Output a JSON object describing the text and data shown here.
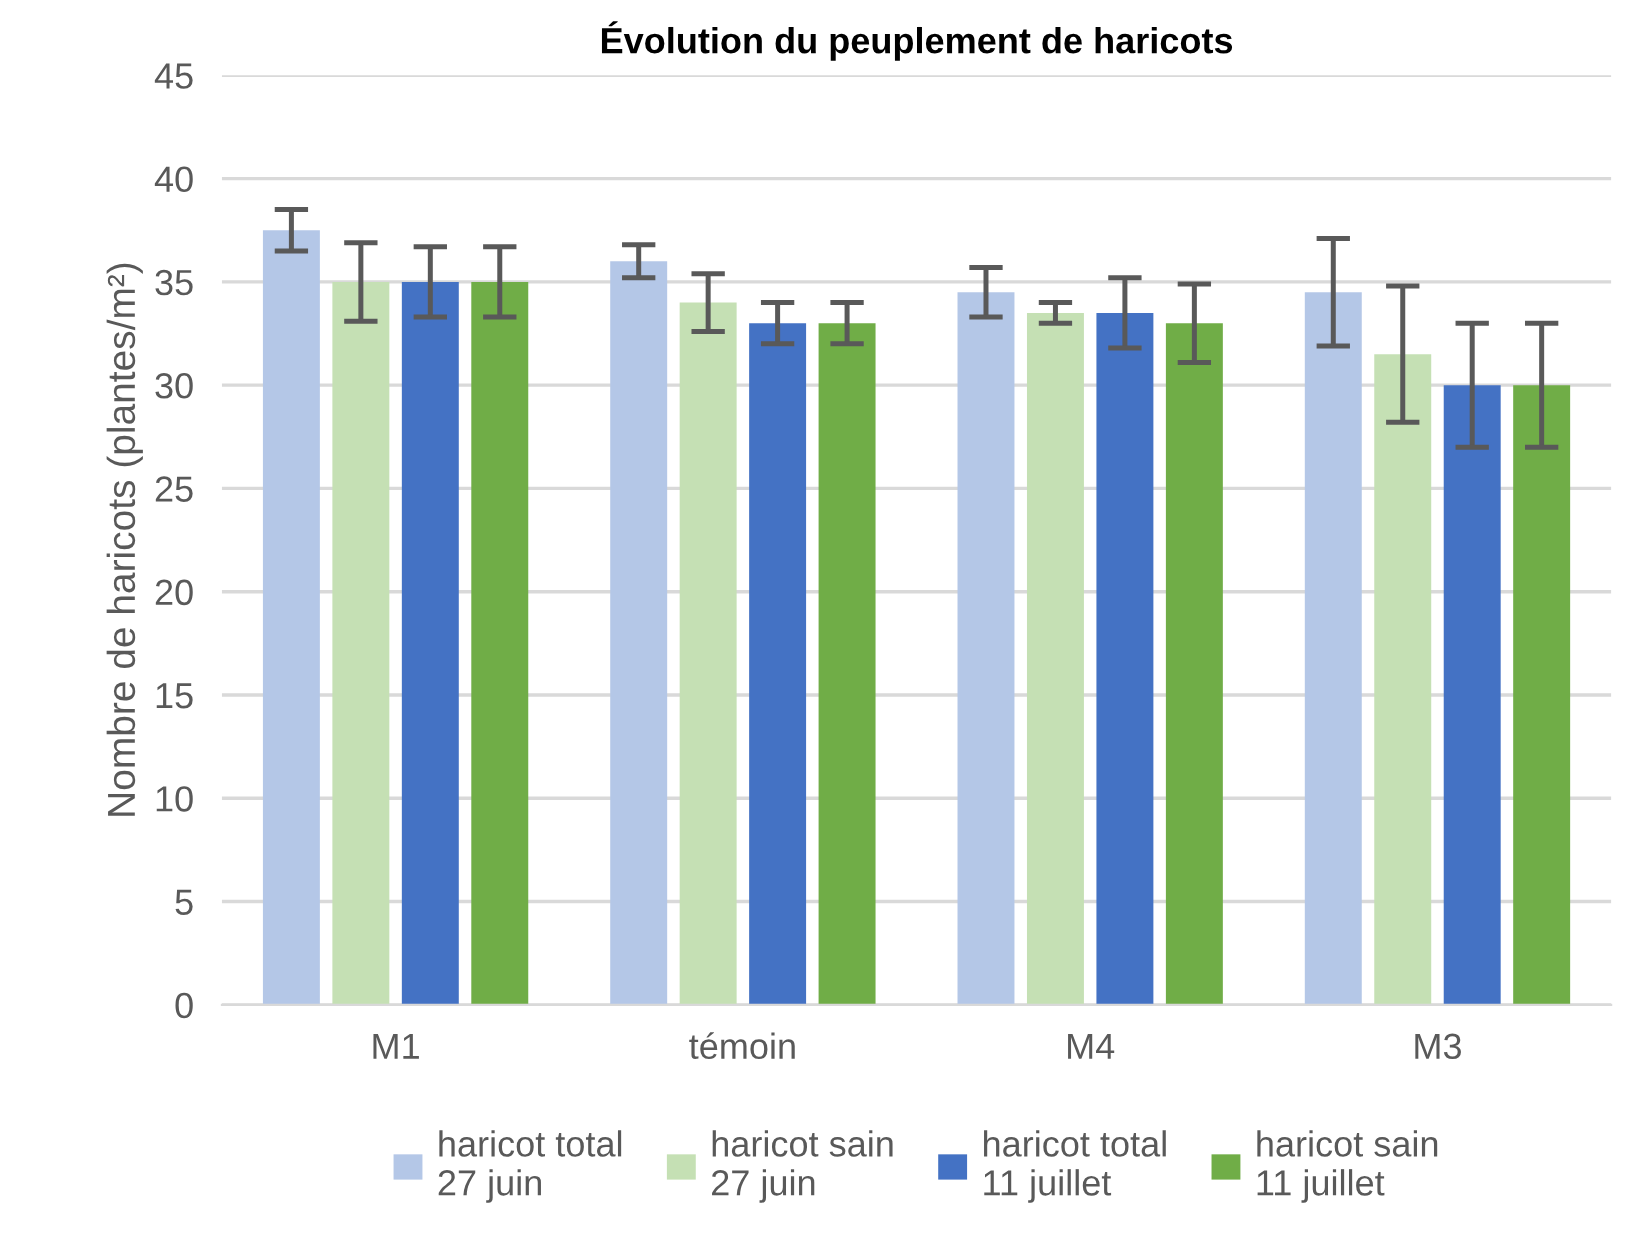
{
  "chart_data": {
    "type": "bar",
    "title": "Évolution du peuplement de haricots",
    "ylabel": "Nombre de haricots (plantes/m²)",
    "categories": [
      "M1",
      "témoin",
      "M4",
      "M3"
    ],
    "series": [
      {
        "name": "haricot total\n27 juin",
        "color": "#b4c7e7",
        "values": [
          37.5,
          36,
          34.5,
          34.5
        ],
        "errors": [
          1.0,
          0.8,
          1.2,
          2.6
        ]
      },
      {
        "name": "haricot sain\n27 juin",
        "color": "#c5e0b4",
        "values": [
          35,
          34,
          33.5,
          31.5
        ],
        "errors": [
          1.9,
          1.4,
          0.5,
          3.3
        ]
      },
      {
        "name": "haricot total\n11 juillet",
        "color": "#4472c4",
        "values": [
          35,
          33,
          33.5,
          30
        ],
        "errors": [
          1.7,
          1.0,
          1.7,
          3.0
        ]
      },
      {
        "name": "haricot sain\n11 juillet",
        "color": "#70ad47",
        "values": [
          35,
          33,
          33,
          30
        ],
        "errors": [
          1.7,
          1.0,
          1.9,
          3.0
        ]
      }
    ],
    "ylim": [
      0,
      45
    ],
    "yticks": [
      0,
      5,
      10,
      15,
      20,
      25,
      30,
      35,
      40,
      45
    ],
    "grid": "y",
    "legend": "bottom"
  }
}
